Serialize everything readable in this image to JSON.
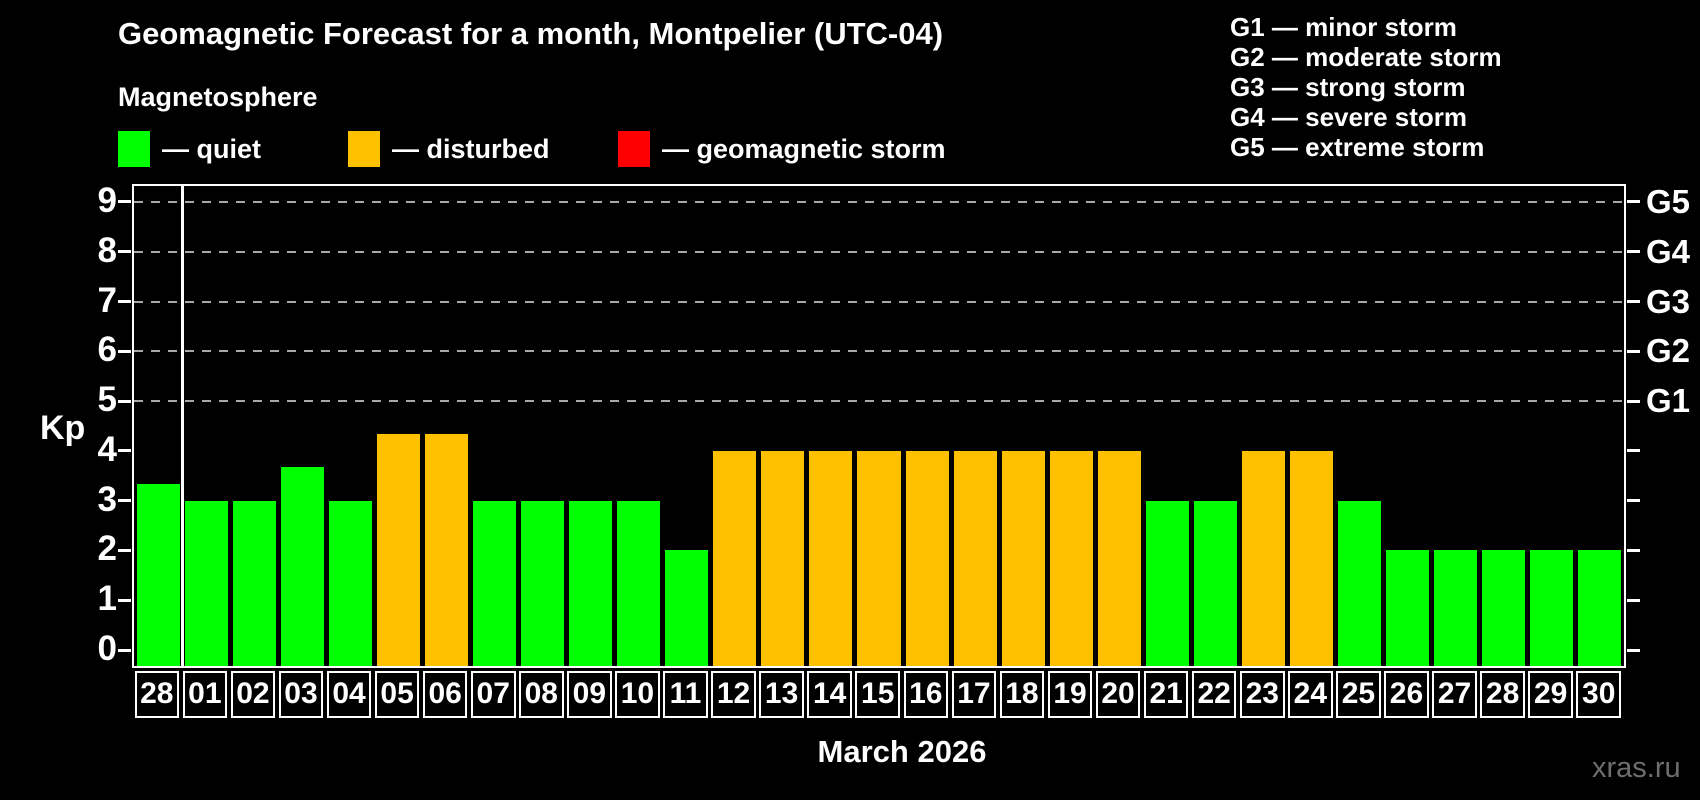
{
  "header": {
    "title": "Geomagnetic Forecast for a month, Montpelier (UTC-04)",
    "subtitle": "Magnetosphere",
    "legend": {
      "items": [
        {
          "status": "quiet",
          "color": "#00ff00",
          "label": "— quiet"
        },
        {
          "status": "disturbed",
          "color": "#ffc000",
          "label": "— disturbed"
        },
        {
          "status": "storm",
          "color": "#ff0000",
          "label": "— geomagnetic storm"
        }
      ]
    }
  },
  "g_legend": {
    "lines": [
      "G1 — minor storm",
      "G2 — moderate storm",
      "G3 — strong storm",
      "G4 — severe storm",
      "G5 — extreme storm"
    ]
  },
  "chart_data": {
    "type": "bar",
    "title": "Geomagnetic Forecast for a month, Montpelier (UTC-04)",
    "ylabel": "Kp",
    "xlabel": "March 2026",
    "ylim": [
      0,
      9
    ],
    "yticks": [
      0,
      1,
      2,
      3,
      4,
      5,
      6,
      7,
      8,
      9
    ],
    "grid_levels": [
      5,
      6,
      7,
      8,
      9
    ],
    "grid_style": "dashed-horizontal",
    "legend_position": "top",
    "right_axis": [
      {
        "level": 9,
        "label": "G5"
      },
      {
        "level": 8,
        "label": "G4"
      },
      {
        "level": 7,
        "label": "G3"
      },
      {
        "level": 6,
        "label": "G2"
      },
      {
        "level": 5,
        "label": "G1"
      }
    ],
    "categories": [
      "28",
      "01",
      "02",
      "03",
      "04",
      "05",
      "06",
      "07",
      "08",
      "09",
      "10",
      "11",
      "12",
      "13",
      "14",
      "15",
      "16",
      "17",
      "18",
      "19",
      "20",
      "21",
      "22",
      "23",
      "24",
      "25",
      "26",
      "27",
      "28",
      "29",
      "30"
    ],
    "values": [
      3.33,
      3,
      3,
      3.67,
      3,
      4.33,
      4.33,
      3,
      3,
      3,
      3,
      2,
      4,
      4,
      4,
      4,
      4,
      4,
      4,
      4,
      4,
      3,
      3,
      4,
      4,
      3,
      2,
      2,
      2,
      2,
      2
    ],
    "statuses": [
      "quiet",
      "quiet",
      "quiet",
      "quiet",
      "quiet",
      "disturbed",
      "disturbed",
      "quiet",
      "quiet",
      "quiet",
      "quiet",
      "quiet",
      "disturbed",
      "disturbed",
      "disturbed",
      "disturbed",
      "disturbed",
      "disturbed",
      "disturbed",
      "disturbed",
      "disturbed",
      "quiet",
      "quiet",
      "disturbed",
      "disturbed",
      "quiet",
      "quiet",
      "quiet",
      "quiet",
      "quiet",
      "quiet"
    ],
    "status_colors": {
      "quiet": "#00ff00",
      "disturbed": "#ffc000",
      "storm": "#ff0000"
    },
    "month_separator_after_index": 0
  },
  "footer": {
    "month_label": "March 2026",
    "watermark": "xras.ru"
  }
}
